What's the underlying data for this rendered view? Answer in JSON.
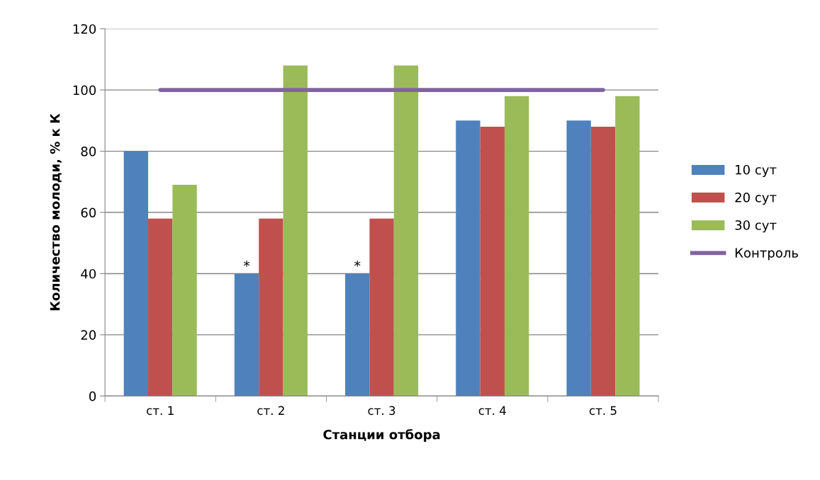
{
  "chart_data": {
    "type": "bar",
    "xlabel": "Станции отбора",
    "ylabel": "Количество молоди, % к К",
    "categories": [
      "ст. 1",
      "ст. 2",
      "ст. 3",
      "ст. 4",
      "ст. 5"
    ],
    "series": [
      {
        "name": "10 сут",
        "color": "#4f81bd",
        "values": [
          80,
          40,
          40,
          90,
          90
        ]
      },
      {
        "name": "20 сут",
        "color": "#c0504d",
        "values": [
          58,
          58,
          58,
          88,
          88
        ]
      },
      {
        "name": "30 сут",
        "color": "#9bbb59",
        "values": [
          69,
          108,
          108,
          98,
          98
        ]
      },
      {
        "name": "Контроль",
        "type": "line",
        "color": "#8064a2",
        "values": [
          100,
          100,
          100,
          100,
          100
        ]
      }
    ],
    "annotations": [
      "*",
      "*"
    ],
    "ylim": [
      0,
      120
    ],
    "yticks": [
      0,
      20,
      40,
      60,
      80,
      100,
      120
    ],
    "grid": "y",
    "legend": "right"
  }
}
